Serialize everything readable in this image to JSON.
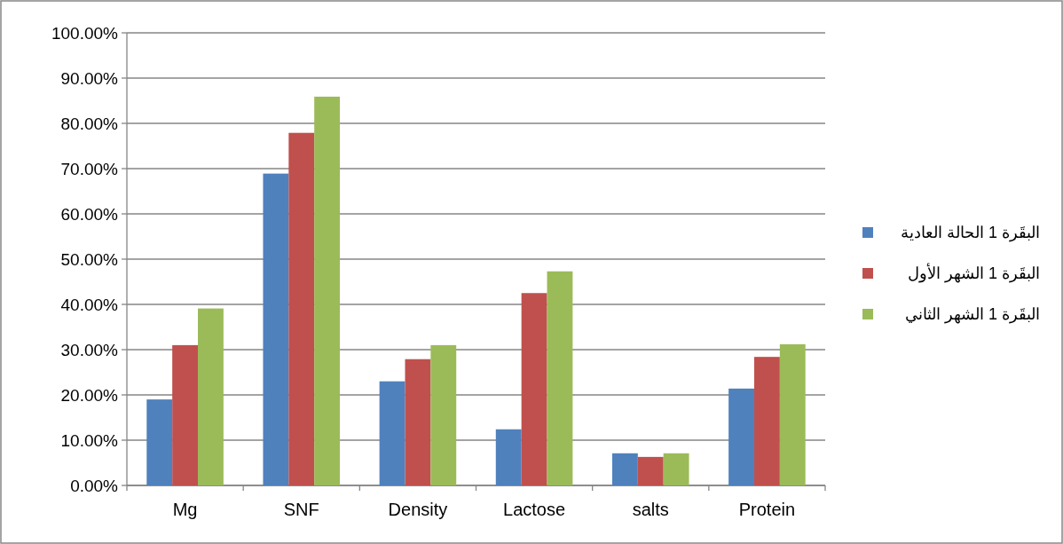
{
  "chart_data": {
    "type": "bar",
    "categories": [
      "Mg",
      "SNF",
      "Density",
      "Lactose",
      "salts",
      "Protein"
    ],
    "series": [
      {
        "name": "البقَرة 1 الحالة العادية",
        "color": "#4f81bd",
        "values": [
          19.0,
          68.9,
          23.0,
          12.4,
          7.1,
          21.4
        ]
      },
      {
        "name": "البقَرة 1 الشهر الأول",
        "color": "#c0504d",
        "values": [
          31.0,
          77.9,
          27.9,
          42.5,
          6.3,
          28.4
        ]
      },
      {
        "name": "البقَرة 1 الشهر الثاني",
        "color": "#9bbb59",
        "values": [
          39.1,
          85.9,
          31.0,
          47.3,
          7.1,
          31.2
        ]
      }
    ],
    "ylim": [
      0,
      100
    ],
    "yticks": [
      {
        "value": 0,
        "label": "0.00%"
      },
      {
        "value": 10,
        "label": "10.00%"
      },
      {
        "value": 20,
        "label": "20.00%"
      },
      {
        "value": 30,
        "label": "30.00%"
      },
      {
        "value": 40,
        "label": "40.00%"
      },
      {
        "value": 50,
        "label": "50.00%"
      },
      {
        "value": 60,
        "label": "60.00%"
      },
      {
        "value": 70,
        "label": "70.00%"
      },
      {
        "value": 80,
        "label": "80.00%"
      },
      {
        "value": 90,
        "label": "90.00%"
      },
      {
        "value": 100,
        "label": "100.00%"
      }
    ],
    "grid": "y",
    "legend": "right"
  }
}
